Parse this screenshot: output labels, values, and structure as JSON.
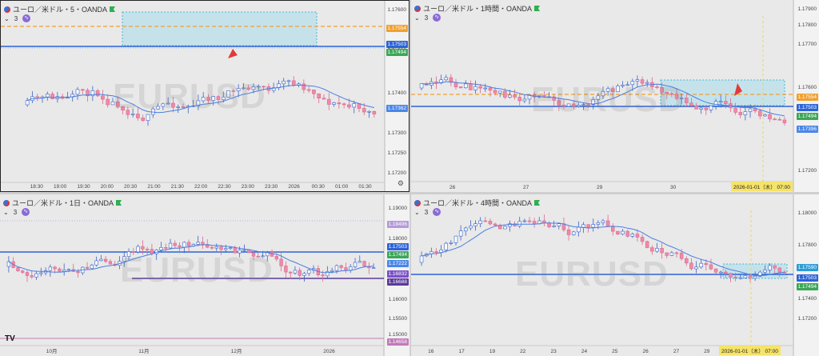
{
  "charts": [
    {
      "id": "tl",
      "title": "ユーロ／米ドル・5・OANDA",
      "subtitle": "3",
      "watermark": "EURUSD",
      "y_ticks": [
        "1.17600",
        "1.17500",
        "1.17400",
        "1.17300",
        "1.17250",
        "1.17200"
      ],
      "x_ticks": [
        "18:30",
        "19:00",
        "19:30",
        "20:00",
        "20:30",
        "21:00",
        "21:30",
        "22:00",
        "22:30",
        "23:00",
        "23:30",
        "2026",
        "00:30",
        "01:00",
        "01:30"
      ],
      "price_tags": [
        {
          "text": "1.17554",
          "color": "#f0a030"
        },
        {
          "text": "1.17503",
          "color": "#2c63d6"
        },
        {
          "text": "1.17494",
          "color": "#3aa757"
        },
        {
          "text": "1.17362",
          "color": "#4a86e8"
        }
      ]
    },
    {
      "id": "tr",
      "title": "ユーロ／米ドル・1時間・OANDA",
      "subtitle": "3",
      "watermark": "EURUSD",
      "y_ticks": [
        "1.17900",
        "1.17800",
        "1.17700",
        "1.17600",
        "1.17300",
        "1.17200"
      ],
      "x_ticks": [
        "26",
        "27",
        "29",
        "30",
        "31"
      ],
      "date_box": "2026-01-01（木） 07:00",
      "price_tags": [
        {
          "text": "1.17554",
          "color": "#f0a030"
        },
        {
          "text": "1.17503",
          "color": "#2c63d6"
        },
        {
          "text": "1.17494",
          "color": "#3aa757"
        },
        {
          "text": "1.17396",
          "color": "#4a86e8"
        }
      ]
    },
    {
      "id": "bl",
      "title": "ユーロ／米ドル・1日・OANDA",
      "subtitle": "3",
      "watermark": "EURUSD",
      "y_ticks": [
        "1.19000",
        "1.18000",
        "1.16000",
        "1.15500",
        "1.15000"
      ],
      "x_ticks": [
        "10月",
        "11月",
        "12月",
        "2026"
      ],
      "tv_logo": "TV",
      "price_tags": [
        {
          "text": "1.18496",
          "color": "#b59ad9"
        },
        {
          "text": "1.17503",
          "color": "#2c63d6"
        },
        {
          "text": "1.17494",
          "color": "#3aa757"
        },
        {
          "text": "1.17222",
          "color": "#4a86e8"
        },
        {
          "text": "1.16832",
          "color": "#7a4fc9"
        },
        {
          "text": "1.16688",
          "color": "#5b3a9a"
        },
        {
          "text": "1.14658",
          "color": "#c07ab8"
        }
      ]
    },
    {
      "id": "br",
      "title": "ユーロ／米ドル・4時間・OANDA",
      "subtitle": "3",
      "watermark": "EURUSD",
      "y_ticks": [
        "1.18000",
        "1.17800",
        "1.17600",
        "1.17400",
        "1.17200"
      ],
      "x_ticks": [
        "16",
        "17",
        "19",
        "22",
        "23",
        "24",
        "25",
        "26",
        "27",
        "29",
        "30",
        "31"
      ],
      "date_box": "2026-01-01（木） 07:00",
      "price_tags": [
        {
          "text": "1.17590",
          "color": "#2c9bd6"
        },
        {
          "text": "1.17503",
          "color": "#2c63d6"
        },
        {
          "text": "1.17494",
          "color": "#3aa757"
        }
      ]
    }
  ],
  "colors": {
    "up": "#ffffff",
    "down": "#f08aa8",
    "outline_up": "#3a63c9",
    "ma": "#4a7fe0",
    "resistance": "#2c63d6",
    "orange": "#f0a030",
    "zone": "#a8dcec"
  }
}
